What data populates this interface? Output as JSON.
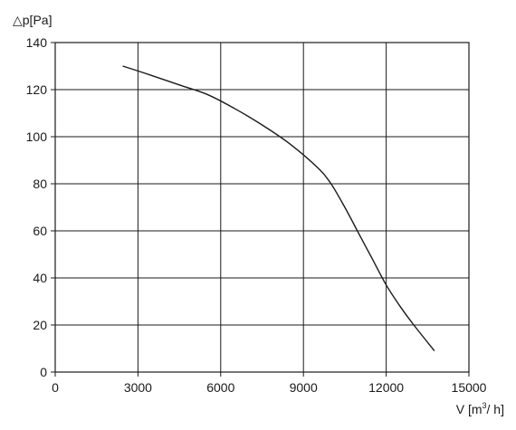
{
  "chart_data": {
    "type": "line",
    "title": "",
    "ylabel": "△p[Pa]",
    "xlabel_prefix": "V [m",
    "xlabel_sup": "3",
    "xlabel_suffix": "/ h]",
    "xlim": [
      0,
      15000
    ],
    "ylim": [
      0,
      140
    ],
    "xticks": [
      0,
      3000,
      6000,
      9000,
      12000,
      15000
    ],
    "yticks": [
      0,
      20,
      40,
      60,
      80,
      100,
      120,
      140
    ],
    "grid": true,
    "legend": "none",
    "series": [
      {
        "x": [
          2450,
          3500,
          4500,
          5500,
          6500,
          7500,
          8500,
          9500,
          10000,
          10500,
          11000,
          11500,
          12000,
          12500,
          13000,
          13750
        ],
        "y": [
          130,
          126,
          122,
          118,
          112,
          105,
          97,
          87,
          80,
          70,
          59,
          48,
          37,
          28,
          20,
          9
        ]
      }
    ]
  },
  "colors": {
    "line": "#1a1a1a",
    "background": "#ffffff"
  }
}
